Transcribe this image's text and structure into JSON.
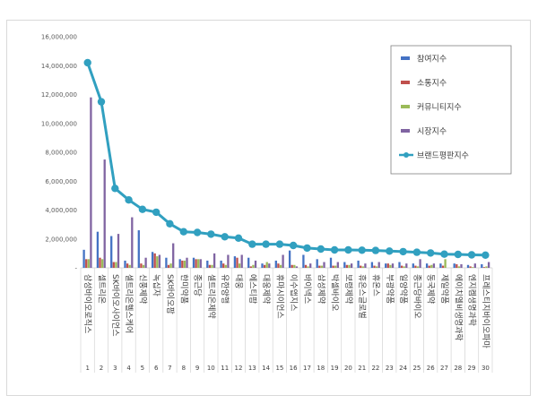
{
  "chart_data": {
    "type": "bar",
    "categories": [
      "삼성바이오로직스",
      "셀트리온",
      "SK바이오사이언스",
      "셀트리온헬스케어",
      "신풍제약",
      "녹십자",
      "SK바이오팜",
      "한미약품",
      "종근당",
      "셀트리온제약",
      "유한양행",
      "대웅",
      "에스티팜",
      "대웅제약",
      "휴마시이언스",
      "이수앱지스",
      "바이넥스",
      "삼성제약",
      "박셀바이오",
      "보령제약",
      "휴온스글로벌",
      "휴온스",
      "부광약품",
      "일양약품",
      "종근당바이오",
      "동국제약",
      "제일약품",
      "에이치엘비생명과학",
      "엔지켐생명과학",
      "프레스티지바이오파마"
    ],
    "index_labels": [
      "1",
      "2",
      "3",
      "4",
      "5",
      "6",
      "7",
      "8",
      "9",
      "10",
      "11",
      "12",
      "13",
      "14",
      "15",
      "16",
      "17",
      "18",
      "19",
      "20",
      "21",
      "22",
      "23",
      "24",
      "25",
      "26",
      "27",
      "28",
      "29",
      "30"
    ],
    "ylim": [
      0,
      16000000
    ],
    "yticks": [
      "-",
      "2,000,000",
      "4,000,000",
      "6,000,000",
      "8,000,000",
      "10,000,000",
      "12,000,000",
      "14,000,000",
      "16,000,000"
    ],
    "grid": false,
    "legend_position": "right",
    "series": [
      {
        "name": "참여지수",
        "color": "#4472c4",
        "values": [
          1250000,
          2500000,
          2200000,
          500000,
          2600000,
          1100000,
          700000,
          600000,
          700000,
          500000,
          500000,
          800000,
          700000,
          300000,
          500000,
          1200000,
          900000,
          600000,
          700000,
          400000,
          500000,
          400000,
          300000,
          400000,
          300000,
          300000,
          300000,
          300000,
          200000,
          250000
        ]
      },
      {
        "name": "소통지수",
        "color": "#c0504d",
        "values": [
          600000,
          700000,
          400000,
          300000,
          300000,
          1000000,
          200000,
          500000,
          600000,
          200000,
          300000,
          700000,
          100000,
          200000,
          300000,
          200000,
          200000,
          150000,
          150000,
          200000,
          150000,
          150000,
          300000,
          150000,
          150000,
          150000,
          150000,
          250000,
          100000,
          50000
        ]
      },
      {
        "name": "커뮤니티지수",
        "color": "#9bbb59",
        "values": [
          600000,
          600000,
          400000,
          200000,
          200000,
          800000,
          300000,
          500000,
          600000,
          200000,
          200000,
          300000,
          200000,
          400000,
          200000,
          200000,
          100000,
          150000,
          150000,
          200000,
          100000,
          100000,
          200000,
          100000,
          100000,
          200000,
          600000,
          100000,
          50000,
          100000
        ]
      },
      {
        "name": "시장지수",
        "color": "#8064a2",
        "values": [
          11800000,
          7500000,
          2350000,
          3500000,
          700000,
          900000,
          1700000,
          700000,
          600000,
          1000000,
          900000,
          900000,
          500000,
          300000,
          900000,
          100000,
          300000,
          400000,
          400000,
          300000,
          300000,
          400000,
          300000,
          300000,
          600000,
          300000,
          0,
          250000,
          300000,
          400000
        ]
      },
      {
        "name": "브랜드평판지수",
        "color": "#31a0c0",
        "values": [
          14200000,
          11500000,
          5500000,
          4700000,
          4050000,
          3850000,
          3050000,
          2500000,
          2450000,
          2330000,
          2150000,
          2060000,
          1640000,
          1640000,
          1640000,
          1550000,
          1370000,
          1300000,
          1240000,
          1240000,
          1220000,
          1200000,
          1160000,
          1120000,
          1080000,
          1030000,
          950000,
          930000,
          900000,
          880000
        ]
      }
    ]
  }
}
